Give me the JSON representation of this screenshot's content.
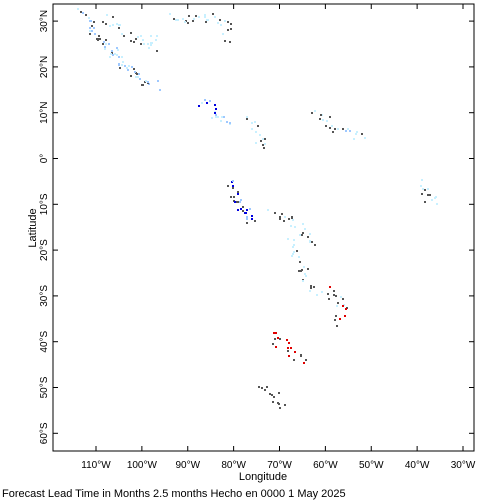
{
  "map": {
    "xlabel": "Longitude",
    "ylabel": "Latitude",
    "x_ticks": [
      {
        "value": -110,
        "label": "110°W"
      },
      {
        "value": -100,
        "label": "100°W"
      },
      {
        "value": -90,
        "label": "90°W"
      },
      {
        "value": -80,
        "label": "80°W"
      },
      {
        "value": -70,
        "label": "70°W"
      },
      {
        "value": -60,
        "label": "60°W"
      },
      {
        "value": -50,
        "label": "50°W"
      },
      {
        "value": -40,
        "label": "40°W"
      },
      {
        "value": -30,
        "label": "30°W"
      }
    ],
    "y_ticks": [
      {
        "value": 30,
        "label": "30°N"
      },
      {
        "value": 20,
        "label": "20°N"
      },
      {
        "value": 10,
        "label": "10°N"
      },
      {
        "value": 0,
        "label": "0°"
      },
      {
        "value": -10,
        "label": "10°S"
      },
      {
        "value": -20,
        "label": "20°S"
      },
      {
        "value": -30,
        "label": "30°S"
      },
      {
        "value": -40,
        "label": "40°S"
      },
      {
        "value": -50,
        "label": "50°S"
      },
      {
        "value": -60,
        "label": "60°S"
      }
    ],
    "lon_range": [
      -118,
      -27
    ],
    "lat_range": [
      -65,
      34
    ],
    "colors": {
      "land_outline": "#555555",
      "light_cyan": "#c8f0ff",
      "pale_blue": "#9ec8ff",
      "blue": "#0000e0",
      "red": "#e00000"
    }
  },
  "caption": "Forecast Lead Time in Months 2.5 months Hecho en 0000 1 May 2025"
}
